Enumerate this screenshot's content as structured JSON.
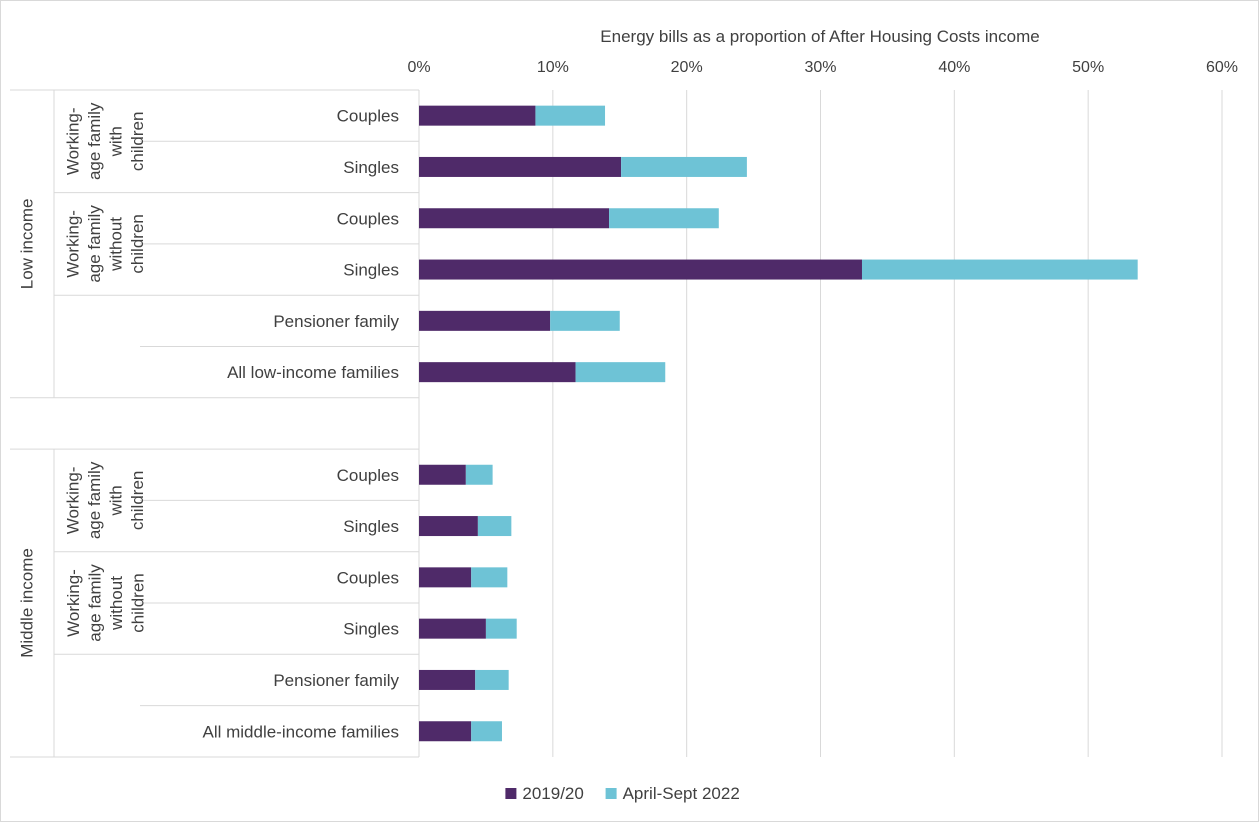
{
  "chart_data": {
    "type": "bar",
    "orientation": "horizontal",
    "stacked": true,
    "title": "",
    "xlabel": "Energy bills as a proportion of After Housing Costs income",
    "ylabel": "",
    "xlim": [
      0,
      0.6
    ],
    "x_ticks": [
      "0%",
      "10%",
      "20%",
      "30%",
      "40%",
      "50%",
      "60%"
    ],
    "axis_position": "top",
    "grid": true,
    "legend_position": "bottom",
    "groups": [
      {
        "name": "Low income",
        "rows": [
          {
            "label": "Couples",
            "subgroup": "Working-age family with children",
            "values": [
              0.087,
              0.052
            ]
          },
          {
            "label": "Singles",
            "subgroup": "Working-age family with children",
            "values": [
              0.151,
              0.094
            ]
          },
          {
            "label": "Couples",
            "subgroup": "Working-age family without children",
            "values": [
              0.142,
              0.082
            ]
          },
          {
            "label": "Singles",
            "subgroup": "Working-age family without children",
            "values": [
              0.331,
              0.206
            ]
          },
          {
            "label": "Pensioner family",
            "subgroup": "",
            "values": [
              0.098,
              0.052
            ]
          },
          {
            "label": "All low-income families",
            "subgroup": "",
            "values": [
              0.117,
              0.067
            ]
          }
        ]
      },
      {
        "name": "Middle income",
        "rows": [
          {
            "label": "Couples",
            "subgroup": "Working-age family with children",
            "values": [
              0.035,
              0.02
            ]
          },
          {
            "label": "Singles",
            "subgroup": "Working-age family with children",
            "values": [
              0.044,
              0.025
            ]
          },
          {
            "label": "Couples",
            "subgroup": "Working-age family without children",
            "values": [
              0.039,
              0.027
            ]
          },
          {
            "label": "Singles",
            "subgroup": "Working-age family without children",
            "values": [
              0.05,
              0.023
            ]
          },
          {
            "label": "Pensioner family",
            "subgroup": "",
            "values": [
              0.042,
              0.025
            ]
          },
          {
            "label": "All middle-income families",
            "subgroup": "",
            "values": [
              0.039,
              0.023
            ]
          }
        ]
      }
    ],
    "subgroup_labels": {
      "with_children": [
        "Working-",
        "age family",
        "with",
        "children"
      ],
      "without_children": [
        "Working-",
        "age family",
        "without",
        "children"
      ]
    },
    "series": [
      {
        "name": "2019/20",
        "color": "#4f2a69"
      },
      {
        "name": "April-Sept 2022",
        "color": "#6ec3d6"
      }
    ]
  }
}
